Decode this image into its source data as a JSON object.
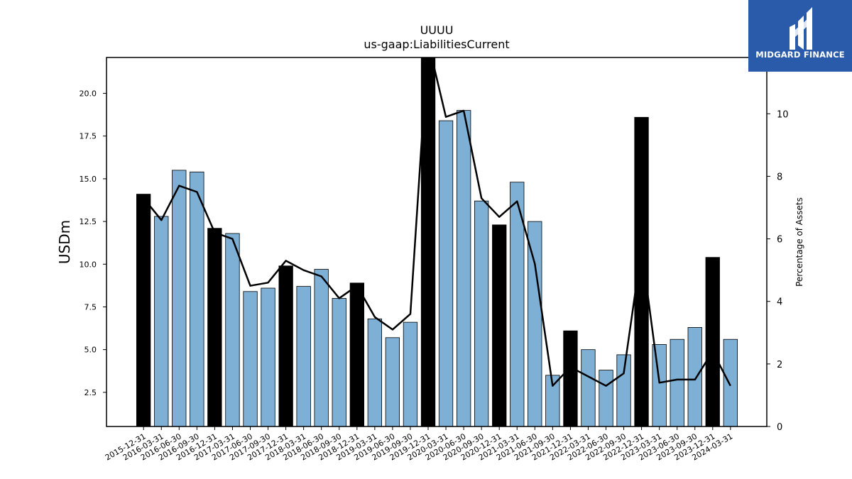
{
  "logo": {
    "text": "MIDGARD FINANCE",
    "icon": "midgard-logo-icon",
    "bg_color": "#2a5bab"
  },
  "chart_data": {
    "type": "bar",
    "title": "UUUU",
    "subtitle": "us-gaap:LiabilitiesCurrent",
    "ylabel": "USDm",
    "y2label": "Percentage of Assets",
    "ylim": [
      0.5,
      22.1
    ],
    "y2lim": [
      0,
      11.8
    ],
    "yticks": [
      "2.5",
      "5.0",
      "7.5",
      "10.0",
      "12.5",
      "15.0",
      "17.5",
      "20.0"
    ],
    "y2ticks": [
      "0",
      "2",
      "4",
      "6",
      "8",
      "10"
    ],
    "bar_color": "#7eb0d5",
    "highlight_color": "#000000",
    "categories": [
      "2015-12-31",
      "2016-03-31",
      "2016-06-30",
      "2016-09-30",
      "2016-12-31",
      "2017-03-31",
      "2017-06-30",
      "2017-09-30",
      "2017-12-31",
      "2018-03-31",
      "2018-06-30",
      "2018-09-30",
      "2018-12-31",
      "2019-03-31",
      "2019-06-30",
      "2019-09-30",
      "2019-12-31",
      "2020-03-31",
      "2020-06-30",
      "2020-09-30",
      "2020-12-31",
      "2021-03-31",
      "2021-06-30",
      "2021-09-30",
      "2021-12-31",
      "2022-03-31",
      "2022-06-30",
      "2022-09-30",
      "2022-12-31",
      "2023-03-31",
      "2023-06-30",
      "2023-09-30",
      "2023-12-31",
      "2024-03-31"
    ],
    "series": [
      {
        "type": "bar",
        "values": [
          14.1,
          12.8,
          15.5,
          15.4,
          12.1,
          11.8,
          8.4,
          8.6,
          9.9,
          8.7,
          9.7,
          8.0,
          8.9,
          6.8,
          5.7,
          6.6,
          22.5,
          18.4,
          19.0,
          13.7,
          12.3,
          14.8,
          12.5,
          3.5,
          6.1,
          5.0,
          3.8,
          4.7,
          18.6,
          5.3,
          5.6,
          6.3,
          10.4,
          5.6
        ],
        "highlight": [
          true,
          false,
          false,
          false,
          true,
          false,
          false,
          false,
          true,
          false,
          false,
          false,
          true,
          false,
          false,
          false,
          true,
          false,
          false,
          false,
          true,
          false,
          false,
          false,
          true,
          false,
          false,
          false,
          true,
          false,
          false,
          false,
          true,
          false
        ]
      },
      {
        "type": "line",
        "axis": "right",
        "color": "#000000",
        "values": [
          7.3,
          6.6,
          7.7,
          7.5,
          6.2,
          6.0,
          4.5,
          4.6,
          5.3,
          5.0,
          4.8,
          4.1,
          4.5,
          3.5,
          3.1,
          3.6,
          12.3,
          9.9,
          10.1,
          7.3,
          6.7,
          7.2,
          5.2,
          1.3,
          1.9,
          1.6,
          1.3,
          1.7,
          5.7,
          1.4,
          1.5,
          1.5,
          2.4,
          1.3
        ]
      }
    ]
  }
}
